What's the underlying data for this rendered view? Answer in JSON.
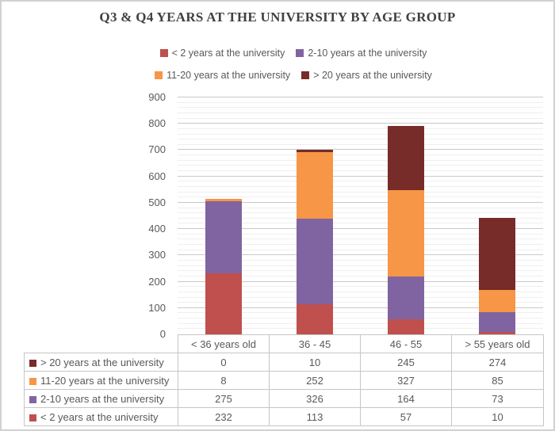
{
  "chart_data": {
    "type": "bar",
    "stacked": true,
    "title": "Q3 & Q4 YEARS AT THE UNIVERSITY BY AGE GROUP",
    "categories": [
      "< 36 years old",
      "36 - 45",
      "46 - 55",
      "> 55 years old"
    ],
    "series": [
      {
        "name": "< 2 years at the university",
        "color": "#c0504d",
        "values": [
          232,
          113,
          57,
          10
        ]
      },
      {
        "name": "2-10 years at the university",
        "color": "#8064a2",
        "values": [
          275,
          326,
          164,
          73
        ]
      },
      {
        "name": "11-20 years at the university",
        "color": "#f79646",
        "values": [
          8,
          252,
          327,
          85
        ]
      },
      {
        "name": "> 20 years at the university",
        "color": "#772c2a",
        "values": [
          0,
          10,
          245,
          274
        ]
      }
    ],
    "totals": [
      515,
      701,
      793,
      442
    ],
    "ylim": [
      0,
      900
    ],
    "y_major_step": 100,
    "y_minor_step": 20,
    "y_tick_labels": [
      "0",
      "100",
      "200",
      "300",
      "400",
      "500",
      "600",
      "700",
      "800",
      "900"
    ],
    "grid": true,
    "legend_position": "top",
    "legend_rows": [
      [
        0,
        1
      ],
      [
        2,
        3
      ]
    ],
    "data_table": {
      "visible": true,
      "row_order": [
        3,
        2,
        1,
        0
      ]
    },
    "style": {
      "major_grid_color": "#c9c9c9",
      "minor_grid_color": "#efefef",
      "table_border_color": "#c6c6c6",
      "title_color": "#404040",
      "text_color": "#595959"
    }
  }
}
